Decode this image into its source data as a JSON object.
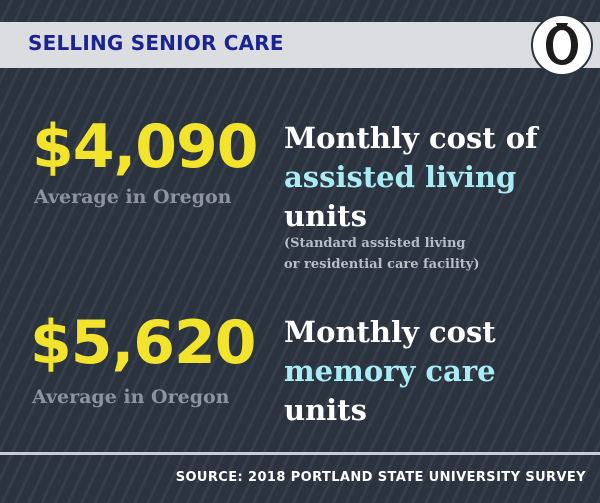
{
  "header": {
    "title": "SELLING SENIOR CARE"
  },
  "logo": {
    "icon": "oregonian-o-logo"
  },
  "stats": [
    {
      "value": "$4,090",
      "label": "Average in Oregon",
      "desc_line1": "Monthly cost of",
      "desc_line2": "assisted living",
      "desc_line3": "units",
      "sub_line1": "(Standard assisted living",
      "sub_line2": "or residential care facility)"
    },
    {
      "value": "$5,620",
      "label": "Average in Oregon",
      "desc_line1": "Monthly cost",
      "desc_line2": "memory care",
      "desc_line3": "units"
    }
  ],
  "footer": {
    "source": "SOURCE: 2018 PORTLAND STATE UNIVERSITY SURVEY"
  },
  "colors": {
    "background": "#2b333e",
    "number": "#f2e32c",
    "highlight": "#a9ecf5",
    "header_text": "#1a2491"
  }
}
